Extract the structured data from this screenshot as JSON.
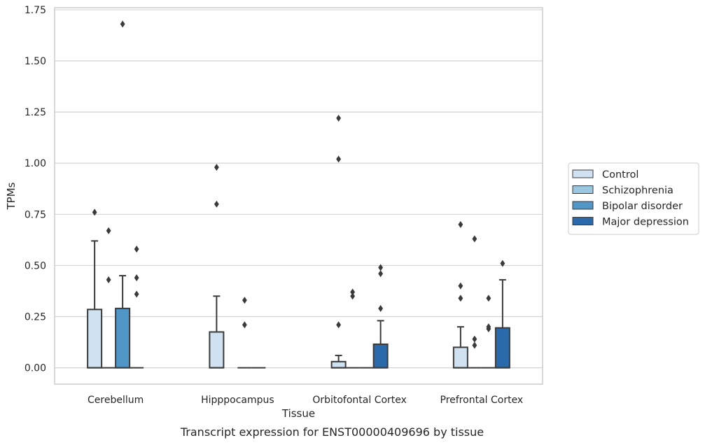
{
  "caption": "Transcript expression for ENST00000409696 by tissue",
  "chart_data": {
    "type": "box",
    "xlabel": "Tissue",
    "ylabel": "TPMs",
    "ylim": [
      -0.08,
      1.76
    ],
    "yticks": [
      "0.00",
      "0.25",
      "0.50",
      "0.75",
      "1.00",
      "1.25",
      "1.50",
      "1.75"
    ],
    "grid": "horizontal",
    "legend_position": "right",
    "categories": [
      "Cerebellum",
      "Hipppocampus",
      "Orbitofontal Cortex",
      "Prefrontal Cortex"
    ],
    "series": [
      {
        "name": "Control",
        "color": "#d0e1f2",
        "boxes": [
          {
            "q1": 0,
            "median": 0,
            "q3": 0.285,
            "whisker_low": 0,
            "whisker_high": 0.62,
            "outliers": [
              0.76
            ]
          },
          {
            "q1": 0,
            "median": 0,
            "q3": 0.175,
            "whisker_low": 0,
            "whisker_high": 0.35,
            "outliers": [
              0.8,
              0.98
            ]
          },
          {
            "q1": 0,
            "median": 0,
            "q3": 0.03,
            "whisker_low": 0,
            "whisker_high": 0.06,
            "outliers": [
              0.21,
              1.02,
              1.22
            ]
          },
          {
            "q1": 0,
            "median": 0,
            "q3": 0.1,
            "whisker_low": 0,
            "whisker_high": 0.2,
            "outliers": [
              0.34,
              0.4,
              0.7
            ]
          }
        ]
      },
      {
        "name": "Schizophrenia",
        "color": "#9ac8e0",
        "boxes": [
          {
            "q1": 0,
            "median": 0,
            "q3": 0,
            "whisker_low": 0,
            "whisker_high": 0,
            "outliers": [
              0.43,
              0.67
            ]
          },
          null,
          {
            "q1": 0,
            "median": 0,
            "q3": 0,
            "whisker_low": 0,
            "whisker_high": 0,
            "outliers": [
              0.35,
              0.37
            ]
          },
          {
            "q1": 0,
            "median": 0,
            "q3": 0,
            "whisker_low": 0,
            "whisker_high": 0,
            "outliers": [
              0.11,
              0.14,
              0.63
            ]
          }
        ]
      },
      {
        "name": "Bipolar disorder",
        "color": "#5096c7",
        "boxes": [
          {
            "q1": 0,
            "median": 0,
            "q3": 0.29,
            "whisker_low": 0,
            "whisker_high": 0.45,
            "outliers": [
              1.68
            ]
          },
          {
            "q1": 0,
            "median": 0,
            "q3": 0,
            "whisker_low": 0,
            "whisker_high": 0,
            "outliers": [
              0.21,
              0.33
            ]
          },
          {
            "q1": 0,
            "median": 0,
            "q3": 0,
            "whisker_low": 0,
            "whisker_high": 0,
            "outliers": []
          },
          {
            "q1": 0,
            "median": 0,
            "q3": 0,
            "whisker_low": 0,
            "whisker_high": 0,
            "outliers": [
              0.19,
              0.2,
              0.34
            ]
          }
        ]
      },
      {
        "name": "Major depression",
        "color": "#2a6aaa",
        "boxes": [
          {
            "q1": 0,
            "median": 0,
            "q3": 0,
            "whisker_low": 0,
            "whisker_high": 0,
            "outliers": [
              0.36,
              0.44,
              0.58
            ]
          },
          {
            "q1": 0,
            "median": 0,
            "q3": 0,
            "whisker_low": 0,
            "whisker_high": 0,
            "outliers": []
          },
          {
            "q1": 0,
            "median": 0,
            "q3": 0.115,
            "whisker_low": 0,
            "whisker_high": 0.23,
            "outliers": [
              0.29,
              0.46,
              0.49
            ]
          },
          {
            "q1": 0,
            "median": 0,
            "q3": 0.195,
            "whisker_low": 0,
            "whisker_high": 0.43,
            "outliers": [
              0.51
            ]
          }
        ]
      }
    ]
  }
}
